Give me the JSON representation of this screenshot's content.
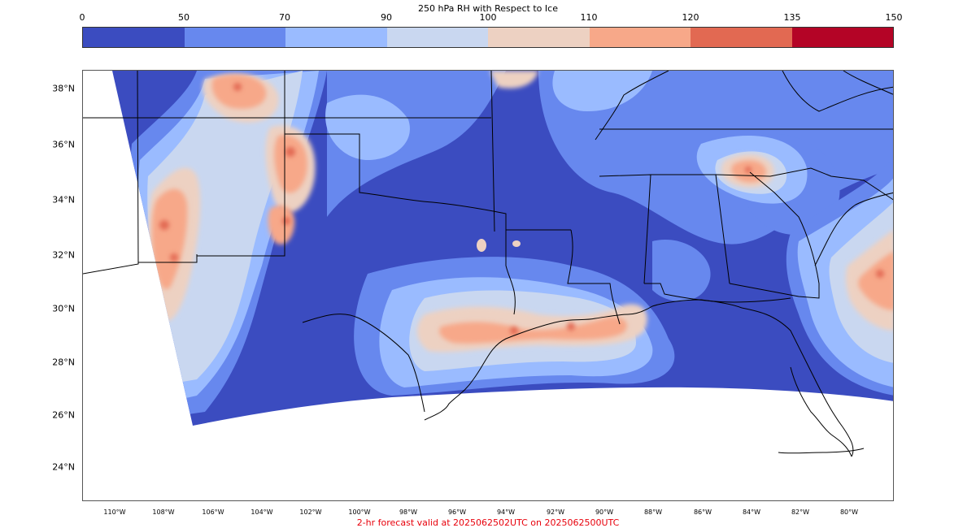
{
  "title": "250 hPa RH with Respect to Ice",
  "colorbar": {
    "ticks": [
      "0",
      "50",
      "70",
      "90",
      "100",
      "110",
      "120",
      "135",
      "150"
    ],
    "colors": [
      "#3b4cc0",
      "#6788ee",
      "#9abbff",
      "#c9d7f0",
      "#edd1c2",
      "#f7a889",
      "#e26952",
      "#b40426"
    ]
  },
  "map": {
    "lat_labels": [
      "38°N",
      "36°N",
      "34°N",
      "32°N",
      "30°N",
      "28°N",
      "26°N",
      "24°N"
    ],
    "lon_labels": [
      "110°W",
      "108°W",
      "106°W",
      "104°W",
      "102°W",
      "100°W",
      "98°W",
      "96°W",
      "94°W",
      "92°W",
      "90°W",
      "88°W",
      "86°W",
      "84°W",
      "82°W",
      "80°W"
    ]
  },
  "footer": "2-hr forecast valid at 2025062502UTC on 2025062500UTC"
}
